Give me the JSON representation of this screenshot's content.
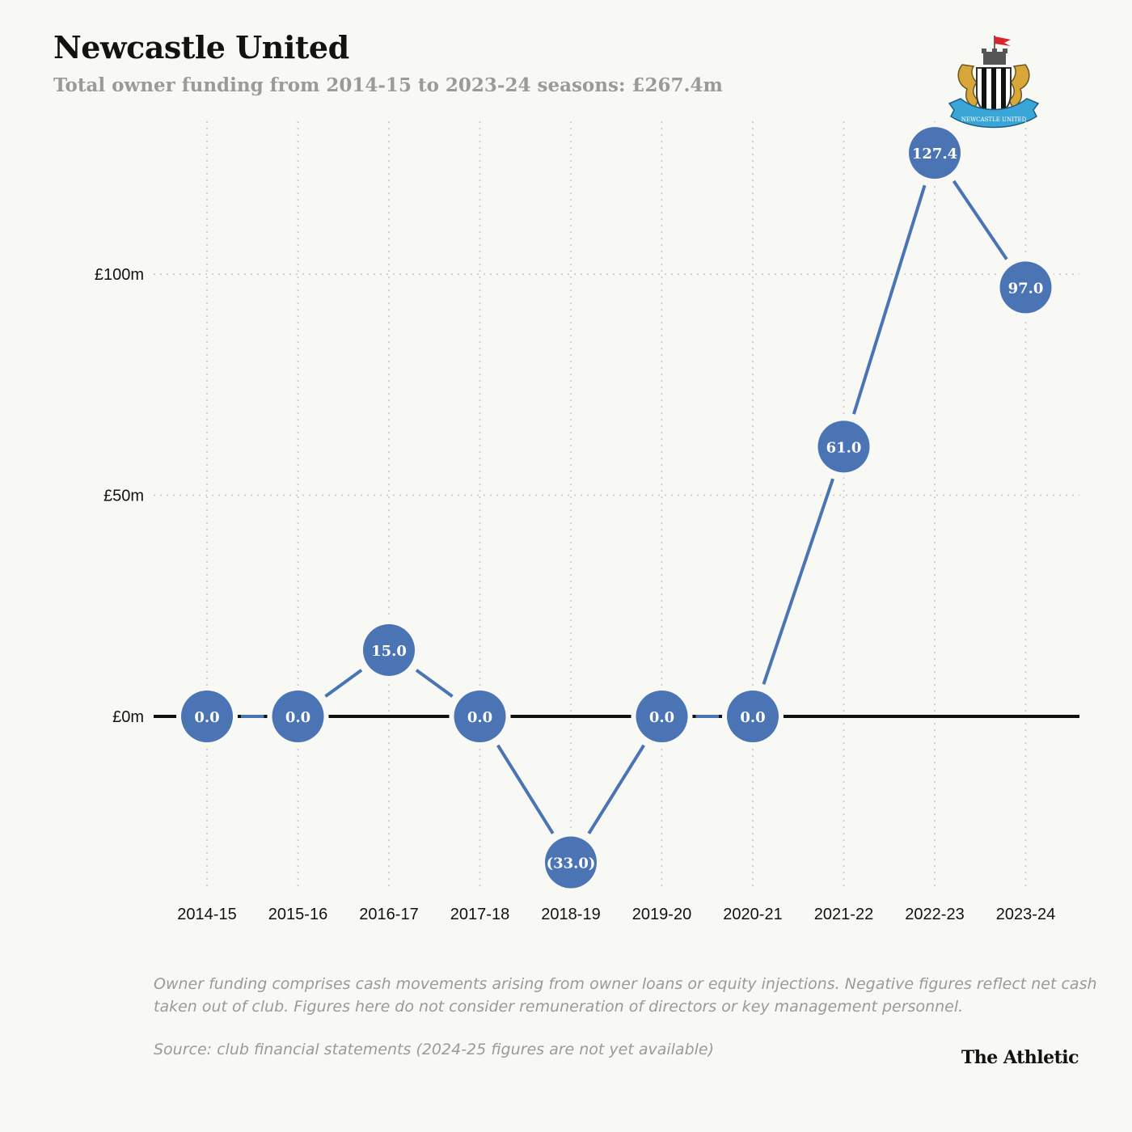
{
  "header": {
    "title": "Newcastle United",
    "subtitle": "Total owner funding from 2014-15 to 2023-24 seasons: £267.4m"
  },
  "crest": {
    "name": "newcastle-united-crest",
    "text": "NEWCASTLE UNITED"
  },
  "chart_data": {
    "type": "line",
    "title": "Newcastle United",
    "subtitle": "Total owner funding from 2014-15 to 2023-24 seasons: £267.4m",
    "xlabel": "",
    "ylabel": "",
    "categories": [
      "2014-15",
      "2015-16",
      "2016-17",
      "2017-18",
      "2018-19",
      "2019-20",
      "2020-21",
      "2021-22",
      "2022-23",
      "2023-24"
    ],
    "values": [
      0.0,
      0.0,
      15.0,
      0.0,
      -33.0,
      0.0,
      0.0,
      61.0,
      127.4,
      97.0
    ],
    "data_labels": [
      "0.0",
      "0.0",
      "15.0",
      "0.0",
      "(33.0)",
      "0.0",
      "0.0",
      "61.0",
      "127.4",
      "97.0"
    ],
    "y_ticks": [
      0,
      50,
      100
    ],
    "y_tick_labels": [
      "£0m",
      "£50m",
      "£100m"
    ],
    "ylim": [
      -40,
      135
    ],
    "grid": true,
    "series_color": "#4a74b4",
    "zero_line_color": "#111111"
  },
  "footer": {
    "note": "Owner funding comprises cash movements arising from owner loans or equity injections. Negative figures reflect net cash taken out of club. Figures here do not consider remuneration of directors or key management personnel.",
    "source": "Source: club financial statements (2024-25 figures are not yet available)",
    "brand": "The Athletic"
  }
}
